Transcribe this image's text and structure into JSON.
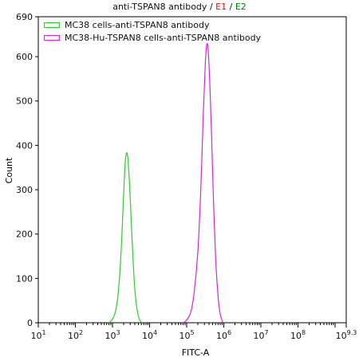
{
  "chart_data": {
    "type": "area",
    "title": {
      "prefix": "anti-TSPAN8 antibody",
      "separator": "/",
      "gate1": "E1",
      "gate2": "E2",
      "gate1_color": "#ff0000",
      "gate2_color": "#008000"
    },
    "xlabel": "FITC-A",
    "ylabel": "Count",
    "x_scale": "log10",
    "xlim": [
      10,
      2000000000
    ],
    "ylim": [
      0,
      690
    ],
    "y_ticks": [
      0,
      100,
      200,
      300,
      400,
      500,
      600,
      690
    ],
    "x_ticks": [
      {
        "base": "10",
        "exp": "1",
        "value": 10
      },
      {
        "base": "10",
        "exp": "2",
        "value": 100
      },
      {
        "base": "10",
        "exp": "3",
        "value": 1000
      },
      {
        "base": "10",
        "exp": "4",
        "value": 10000
      },
      {
        "base": "10",
        "exp": "5",
        "value": 100000
      },
      {
        "base": "10",
        "exp": "6",
        "value": 1000000
      },
      {
        "base": "10",
        "exp": "7",
        "value": 10000000
      },
      {
        "base": "10",
        "exp": "8",
        "value": 100000000
      },
      {
        "base": "10",
        "exp": "9.3",
        "value": 2000000000
      }
    ],
    "legend_placement": "top-left",
    "series": [
      {
        "name": "MC38 cells-anti-TSPAN8 antibody",
        "color": "#2ecc2e",
        "x": [
          800,
          1000,
          1200,
          1400,
          1600,
          1800,
          2000,
          2200,
          2400,
          2600,
          2900,
          3200,
          3600,
          4000,
          4600,
          5300,
          6200
        ],
        "y": [
          0,
          8,
          25,
          60,
          120,
          200,
          290,
          360,
          383,
          370,
          310,
          230,
          140,
          75,
          30,
          8,
          0
        ]
      },
      {
        "name": "MC38-Hu-TSPAN8 cells-anti-TSPAN8 antibody",
        "color": "#e020e0",
        "x": [
          80000,
          100000,
          130000,
          160000,
          200000,
          240000,
          280000,
          320000,
          350000,
          380000,
          420000,
          470000,
          530000,
          600000,
          700000,
          800000,
          950000
        ],
        "y": [
          0,
          6,
          25,
          70,
          160,
          300,
          470,
          590,
          628,
          615,
          540,
          420,
          270,
          150,
          60,
          20,
          0
        ]
      }
    ]
  }
}
